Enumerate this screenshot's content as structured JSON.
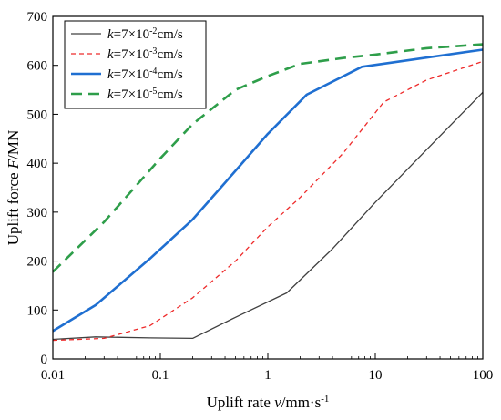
{
  "chart_data": {
    "type": "line",
    "xscale": "log",
    "xlim": [
      0.01,
      100
    ],
    "ylim": [
      0,
      700
    ],
    "x_ticks": [
      "0.01",
      "0.1",
      "1",
      "10",
      "100"
    ],
    "y_ticks": [
      "0",
      "100",
      "200",
      "300",
      "400",
      "500",
      "600",
      "700"
    ],
    "xlabel": {
      "prefix": "Uplift rate ",
      "var": "v",
      "unit_pre": "/mm·s",
      "unit_sup": "-1"
    },
    "ylabel": {
      "prefix": "Uplift force ",
      "var": "F",
      "unit": "/MN"
    },
    "grid": false,
    "legend_position": "top-left",
    "series": [
      {
        "name": {
          "var": "k",
          "pre": "=7×10",
          "sup": "-2",
          "post": "cm/s"
        },
        "color": "#404040",
        "dash": "solid",
        "width": 1.3,
        "x": [
          0.01,
          0.025,
          0.08,
          0.2,
          0.5,
          1.5,
          4,
          10,
          25,
          100
        ],
        "y": [
          40,
          45,
          43,
          42,
          85,
          135,
          225,
          320,
          410,
          545
        ]
      },
      {
        "name": {
          "var": "k",
          "pre": "=7×10",
          "sup": "-3",
          "post": "cm/s"
        },
        "color": "#ee2a2a",
        "dash": "dashed",
        "width": 1.3,
        "x": [
          0.01,
          0.03,
          0.08,
          0.2,
          0.5,
          1,
          2,
          5,
          12,
          30,
          100
        ],
        "y": [
          38,
          42,
          68,
          125,
          200,
          270,
          330,
          420,
          525,
          570,
          608
        ]
      },
      {
        "name": {
          "var": "k",
          "pre": "=7×10",
          "sup": "-4",
          "post": "cm/s"
        },
        "color": "#1f6fd1",
        "dash": "solid",
        "width": 2.6,
        "x": [
          0.01,
          0.025,
          0.08,
          0.2,
          0.4,
          1,
          2.3,
          7.5,
          100
        ],
        "y": [
          57,
          110,
          205,
          285,
          360,
          460,
          540,
          597,
          632
        ]
      },
      {
        "name": {
          "var": "k",
          "pre": "=7×10",
          "sup": "-5",
          "post": "cm/s"
        },
        "color": "#2e9e4a",
        "dash": "longdash",
        "width": 2.6,
        "x": [
          0.01,
          0.03,
          0.1,
          0.2,
          0.5,
          1,
          2,
          5,
          10,
          30,
          100
        ],
        "y": [
          178,
          280,
          410,
          480,
          550,
          578,
          603,
          615,
          622,
          635,
          643
        ]
      }
    ]
  }
}
